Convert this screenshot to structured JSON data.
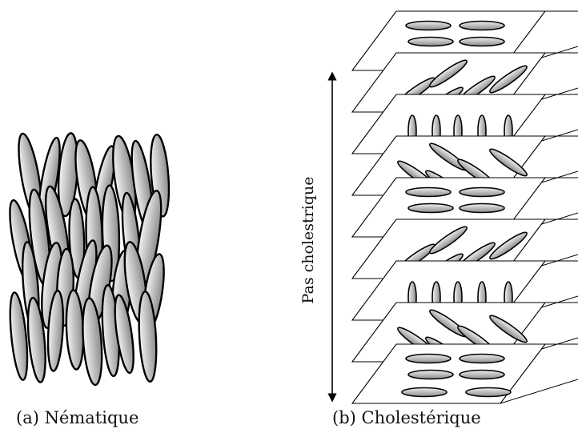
{
  "captions": {
    "nematic": "(a) Nématique",
    "cholesteric": "(b) Cholestérique"
  },
  "pitch_label": "Pas cholestrique",
  "colors": {
    "outline": "#000000",
    "molecule_light": "#f4f4f4",
    "molecule_dark": "#8a8a8a",
    "layer_fill": "#ffffff"
  },
  "layer_orientations": [
    "horizontal",
    "diagonal-right",
    "vertical",
    "diagonal-left",
    "horizontal",
    "diagonal-right",
    "vertical",
    "diagonal-left",
    "horizontal"
  ]
}
